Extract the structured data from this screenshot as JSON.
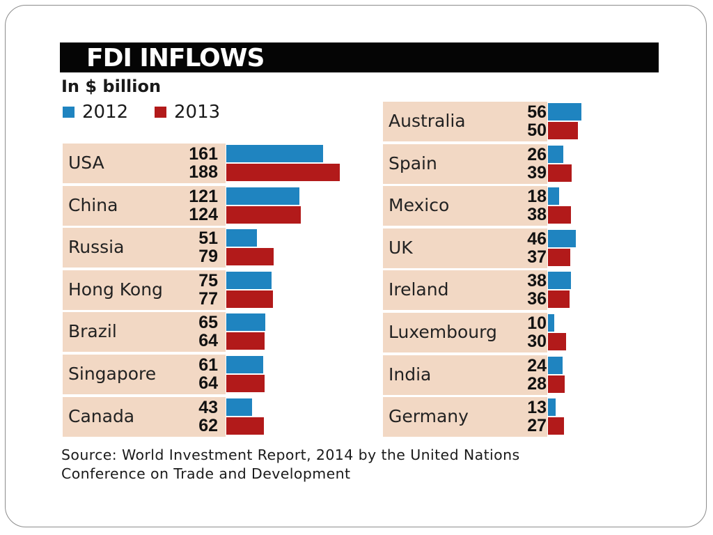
{
  "colors": {
    "series_2012": "#1f84c0",
    "series_2013": "#b21a1a",
    "row_background": "#f2d8c4",
    "title_background": "#050505"
  },
  "chart_data": {
    "type": "bar",
    "orientation": "horizontal",
    "title": "FDI INFLOWS",
    "subtitle": "In $ billion",
    "legend": [
      "2012",
      "2013"
    ],
    "categories": [
      "USA",
      "China",
      "Russia",
      "Hong Kong",
      "Brazil",
      "Singapore",
      "Canada",
      "Australia",
      "Spain",
      "Mexico",
      "UK",
      "Ireland",
      "Luxembourg",
      "India",
      "Germany"
    ],
    "series": [
      {
        "name": "2012",
        "values": [
          161,
          121,
          51,
          75,
          65,
          61,
          43,
          56,
          26,
          18,
          46,
          38,
          10,
          24,
          13
        ]
      },
      {
        "name": "2013",
        "values": [
          188,
          124,
          79,
          77,
          64,
          64,
          62,
          50,
          39,
          38,
          37,
          36,
          30,
          28,
          27
        ]
      }
    ],
    "columns": [
      {
        "categories": [
          "USA",
          "China",
          "Russia",
          "Hong Kong",
          "Brazil",
          "Singapore",
          "Canada"
        ]
      },
      {
        "categories": [
          "Australia",
          "Spain",
          "Mexico",
          "UK",
          "Ireland",
          "Luxembourg",
          "India",
          "Germany"
        ]
      }
    ],
    "source": [
      "Source: World Investment Report, 2014 by the United Nations",
      "Conference on Trade and Development"
    ]
  }
}
